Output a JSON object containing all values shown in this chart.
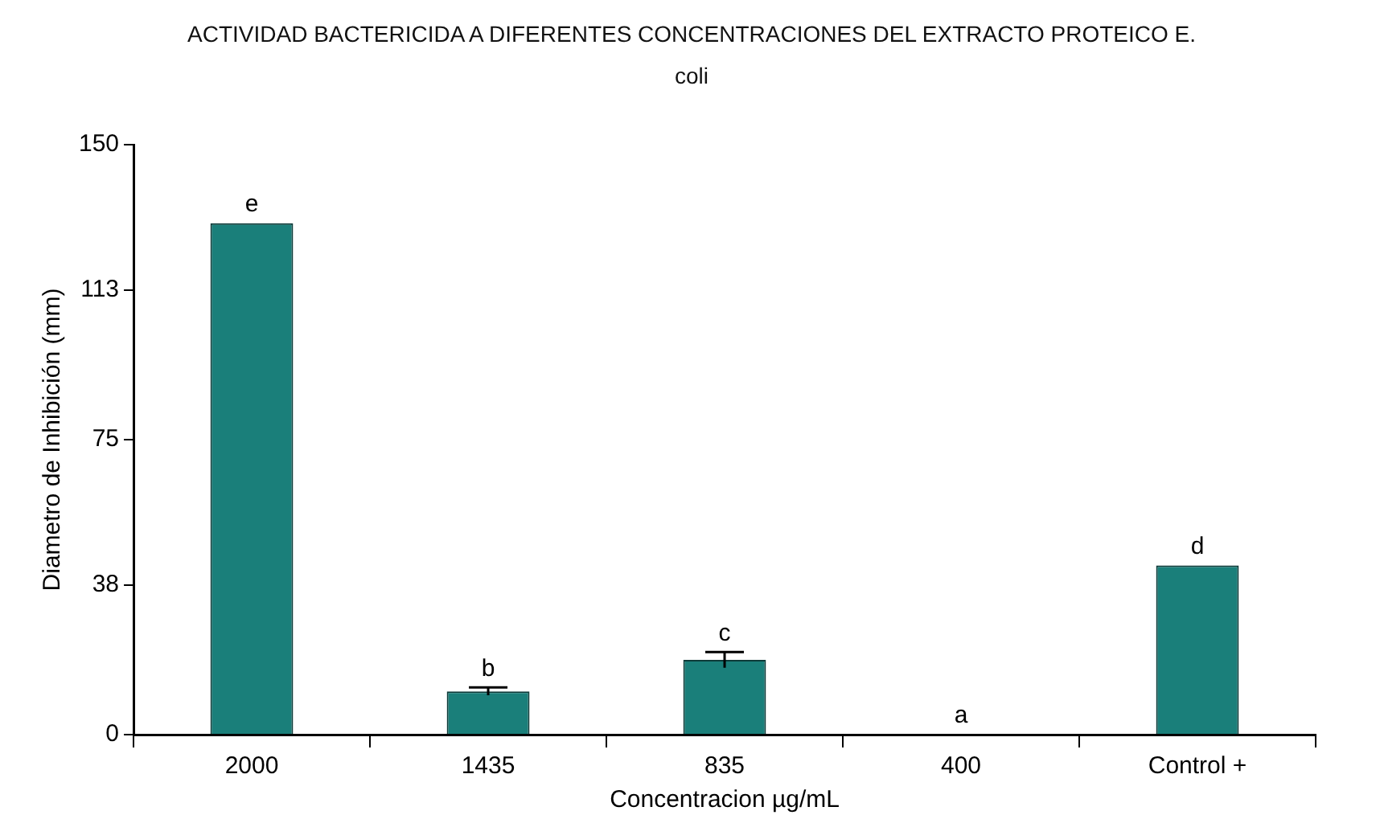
{
  "chart_data": {
    "type": "bar",
    "title": "ACTIVIDAD BACTERICIDA A DIFERENTES CONCENTRACIONES DEL EXTRACTO PROTEICO E. coli",
    "xlabel": "Concentracion µg/mL",
    "ylabel": "Diametro de Inhibición (mm)",
    "categories": [
      "2000",
      "1435",
      "835",
      "400",
      "Control +"
    ],
    "values": [
      130,
      11,
      19,
      0,
      43
    ],
    "color": "#1a7f7a",
    "errors": [
      null,
      1,
      2,
      null,
      null
    ],
    "ylim": [
      0,
      150
    ],
    "yticks": [
      0,
      38,
      75,
      113,
      150
    ],
    "grid": false,
    "legend": false,
    "annotations": [
      {
        "text": "e",
        "x": "2000",
        "y": 130
      },
      {
        "text": "b",
        "x": "1435",
        "y": 12
      },
      {
        "text": "c",
        "x": "835",
        "y": 21
      },
      {
        "text": "a",
        "x": "400",
        "y": 0
      },
      {
        "text": "d",
        "x": "Control +",
        "y": 43
      }
    ]
  }
}
